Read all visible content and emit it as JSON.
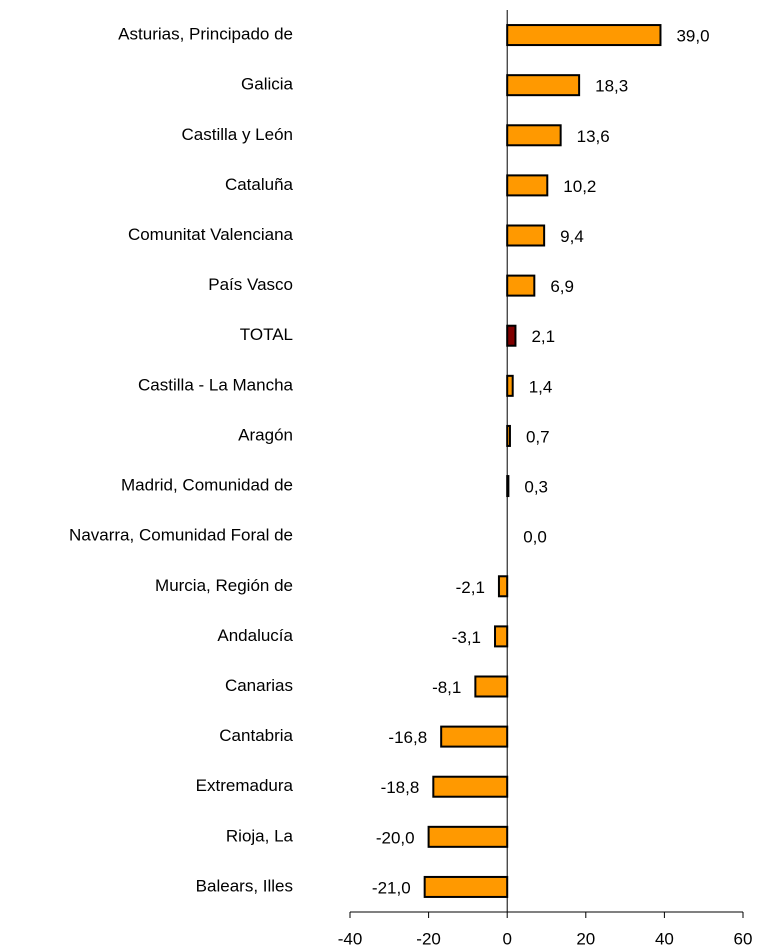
{
  "chart_data": {
    "type": "bar",
    "orientation": "horizontal",
    "categories": [
      "Asturias, Principado de",
      "Galicia",
      "Castilla y León",
      "Cataluña",
      "Comunitat Valenciana",
      "País Vasco",
      "TOTAL",
      "Castilla - La Mancha",
      "Aragón",
      "Madrid, Comunidad de",
      "Navarra, Comunidad Foral de",
      "Murcia, Región de",
      "Andalucía",
      "Canarias",
      "Cantabria",
      "Extremadura",
      "Rioja, La",
      "Balears, Illes"
    ],
    "values": [
      39.0,
      18.3,
      13.6,
      10.2,
      9.4,
      6.9,
      2.1,
      1.4,
      0.7,
      0.3,
      0.0,
      -2.1,
      -3.1,
      -8.1,
      -16.8,
      -18.8,
      -20.0,
      -21.0
    ],
    "value_labels": [
      "39,0",
      "18,3",
      "13,6",
      "10,2",
      "9,4",
      "6,9",
      "2,1",
      "1,4",
      "0,7",
      "0,3",
      "0,0",
      "-2,1",
      "-3,1",
      "-8,1",
      "-16,8",
      "-18,8",
      "-20,0",
      "-21,0"
    ],
    "colors": [
      "#ff9900",
      "#ff9900",
      "#ff9900",
      "#ff9900",
      "#ff9900",
      "#ff9900",
      "#800000",
      "#ff9900",
      "#ff9900",
      "#ff9900",
      "#ff9900",
      "#ff9900",
      "#ff9900",
      "#ff9900",
      "#ff9900",
      "#ff9900",
      "#ff9900",
      "#ff9900"
    ],
    "xlim": [
      -40,
      60
    ],
    "xticks": [
      -40,
      -20,
      0,
      20,
      40,
      60
    ]
  }
}
